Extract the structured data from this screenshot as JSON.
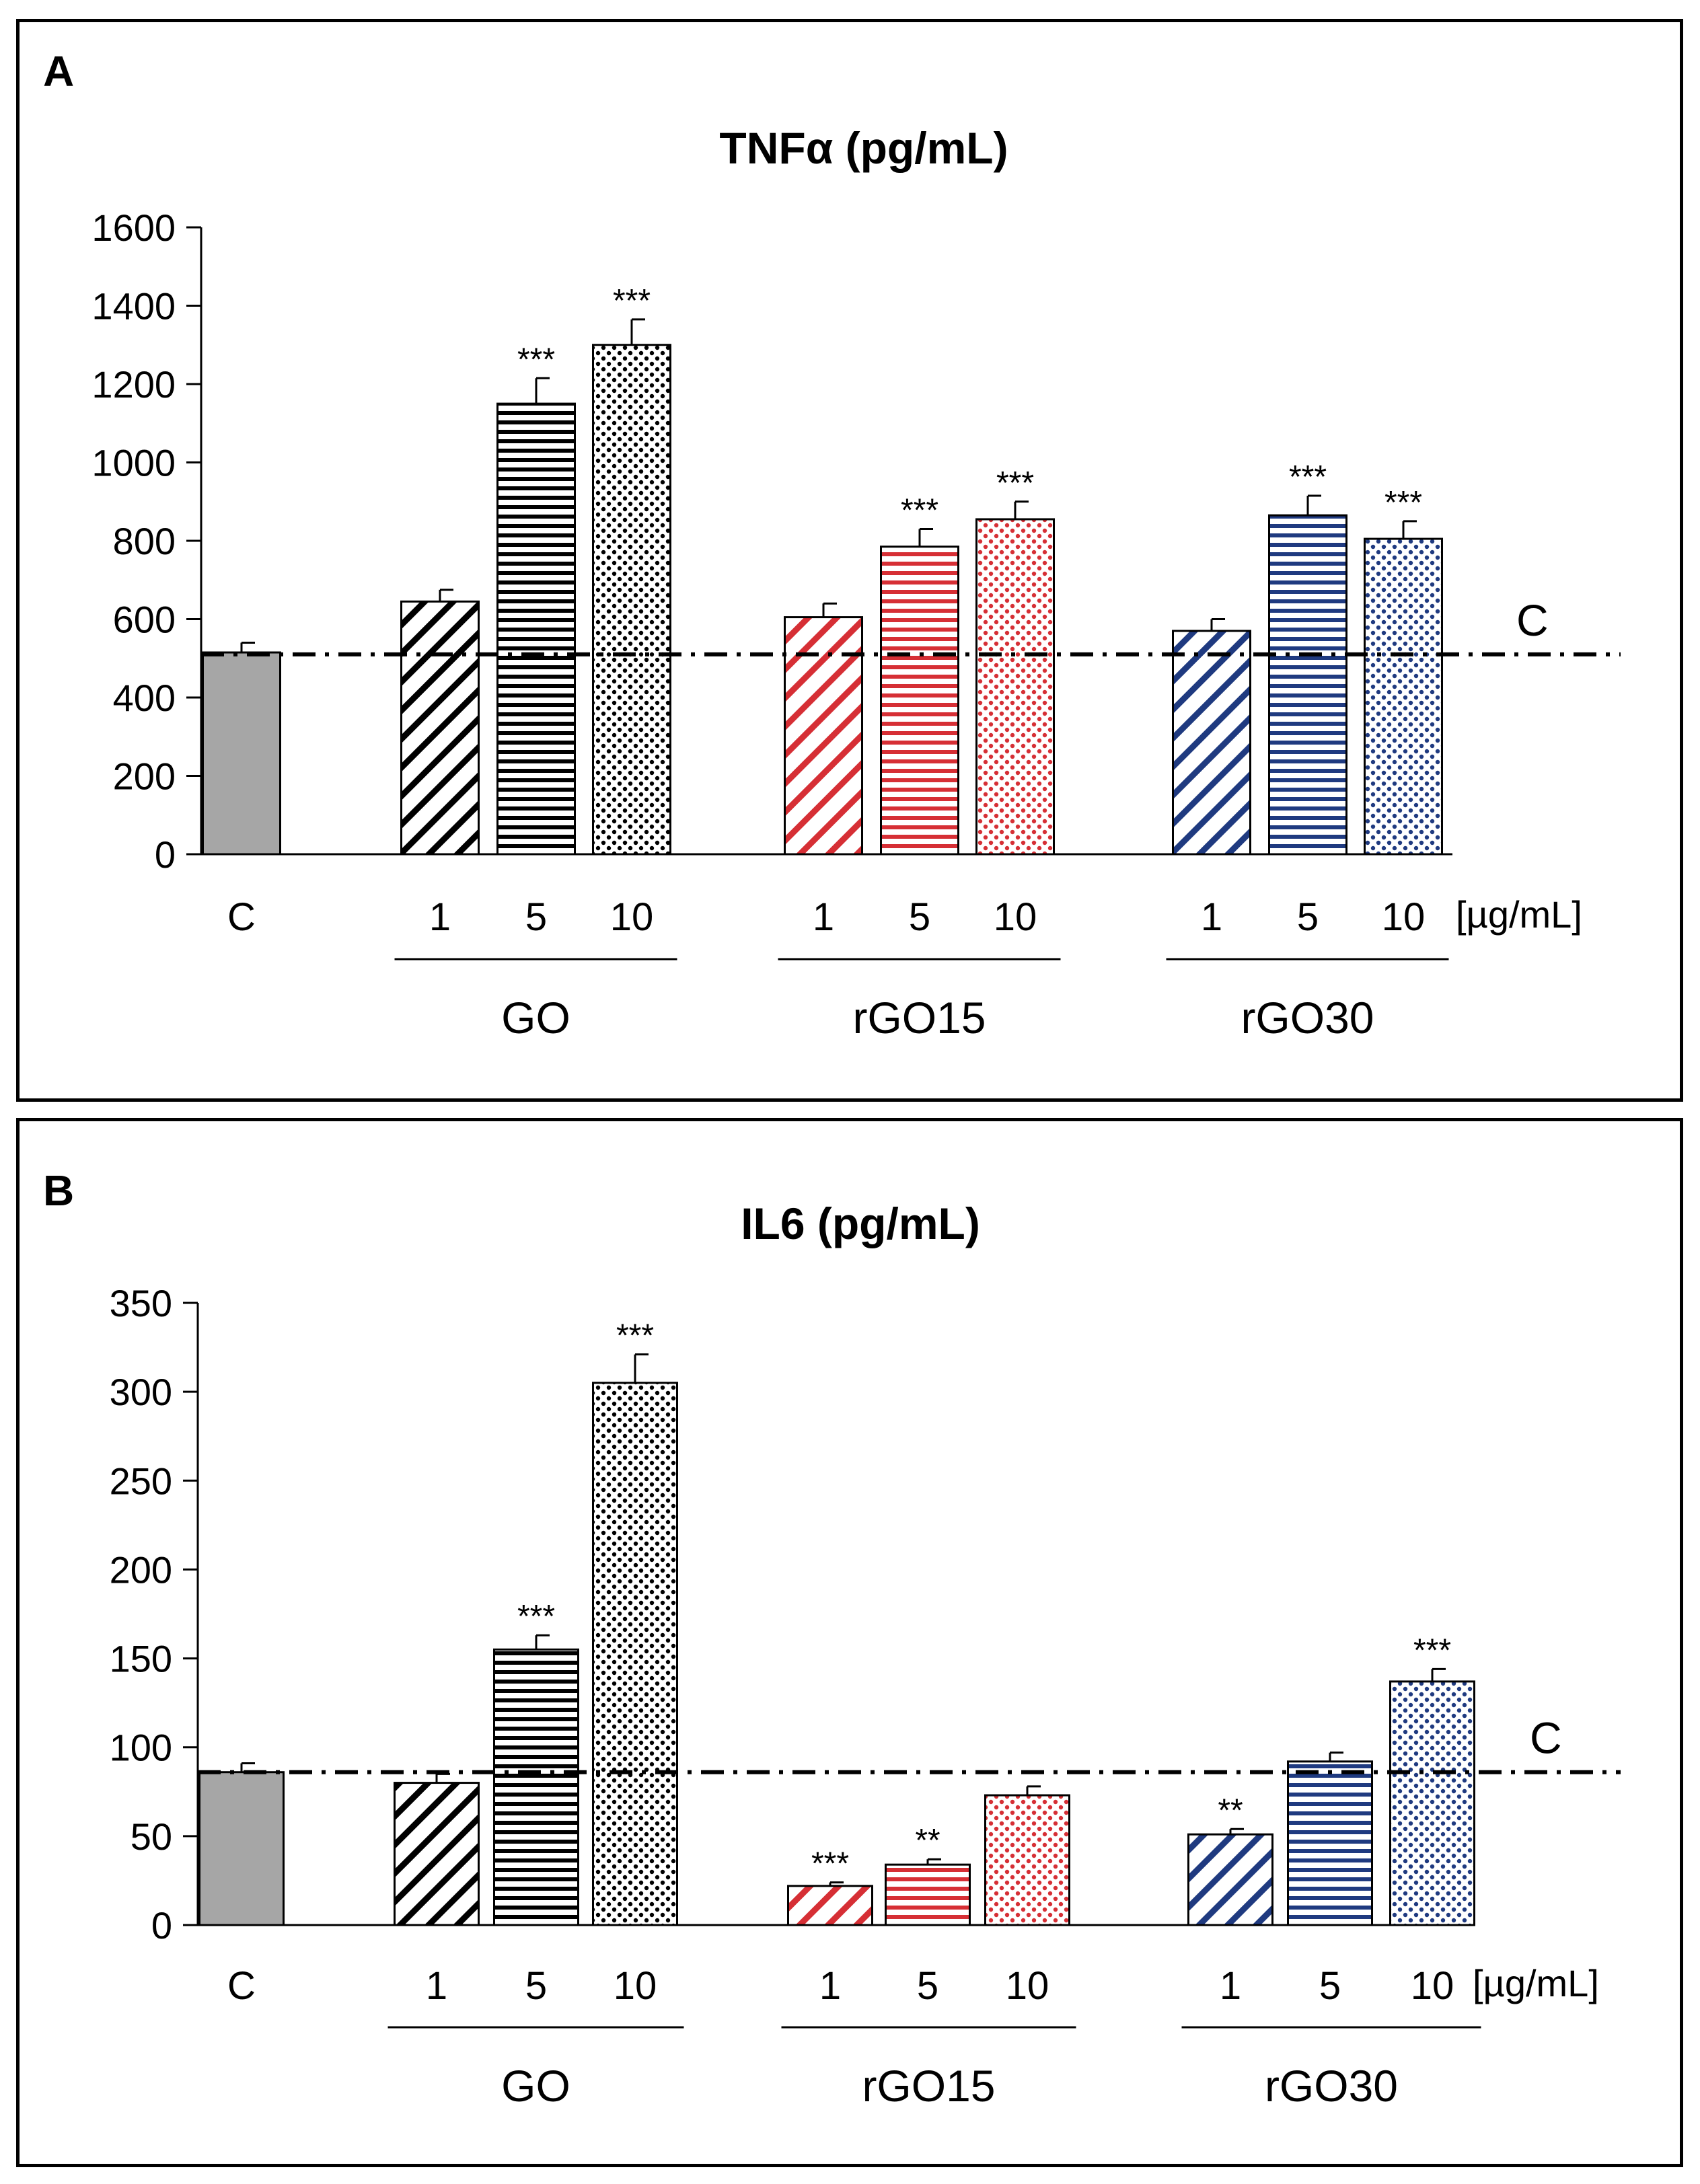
{
  "chart_data": [
    {
      "panel_label": "A",
      "type": "bar",
      "title": "TNFα (pg/mL)",
      "ylim": [
        0,
        1600
      ],
      "yticks": [
        0,
        200,
        400,
        600,
        800,
        1000,
        1200,
        1400,
        1600
      ],
      "unit_label": "[µg/mL]",
      "reference_line": {
        "label": "C",
        "value": 510
      },
      "groups": [
        {
          "name": "",
          "bars": [
            {
              "label": "C",
              "value": 515,
              "error": 25,
              "sig": "",
              "color": "#a6a6a6",
              "pattern": "solid"
            }
          ]
        },
        {
          "name": "GO",
          "bars": [
            {
              "label": "1",
              "value": 645,
              "error": 30,
              "sig": "",
              "color": "#000000",
              "pattern": "diag"
            },
            {
              "label": "5",
              "value": 1150,
              "error": 65,
              "sig": "***",
              "color": "#000000",
              "pattern": "horiz"
            },
            {
              "label": "10",
              "value": 1300,
              "error": 65,
              "sig": "***",
              "color": "#000000",
              "pattern": "dots"
            }
          ]
        },
        {
          "name": "rGO15",
          "bars": [
            {
              "label": "1",
              "value": 605,
              "error": 35,
              "sig": "",
              "color": "#d62f35",
              "pattern": "diag"
            },
            {
              "label": "5",
              "value": 785,
              "error": 45,
              "sig": "***",
              "color": "#d62f35",
              "pattern": "horiz"
            },
            {
              "label": "10",
              "value": 855,
              "error": 45,
              "sig": "***",
              "color": "#d62f35",
              "pattern": "dots"
            }
          ]
        },
        {
          "name": "rGO30",
          "bars": [
            {
              "label": "1",
              "value": 570,
              "error": 30,
              "sig": "",
              "color": "#1f3a80",
              "pattern": "diag"
            },
            {
              "label": "5",
              "value": 865,
              "error": 50,
              "sig": "***",
              "color": "#1f3a80",
              "pattern": "horiz"
            },
            {
              "label": "10",
              "value": 805,
              "error": 45,
              "sig": "***",
              "color": "#1f3a80",
              "pattern": "dots"
            }
          ]
        }
      ]
    },
    {
      "panel_label": "B",
      "type": "bar",
      "title": "IL6 (pg/mL)",
      "ylim": [
        0,
        350
      ],
      "yticks": [
        0,
        50,
        100,
        150,
        200,
        250,
        300,
        350
      ],
      "unit_label": "[µg/mL]",
      "reference_line": {
        "label": "C",
        "value": 86
      },
      "groups": [
        {
          "name": "",
          "bars": [
            {
              "label": "C",
              "value": 86,
              "error": 5,
              "sig": "",
              "color": "#a6a6a6",
              "pattern": "solid"
            }
          ]
        },
        {
          "name": "GO",
          "bars": [
            {
              "label": "1",
              "value": 80,
              "error": 5,
              "sig": "",
              "color": "#000000",
              "pattern": "diag"
            },
            {
              "label": "5",
              "value": 155,
              "error": 8,
              "sig": "***",
              "color": "#000000",
              "pattern": "horiz"
            },
            {
              "label": "10",
              "value": 305,
              "error": 16,
              "sig": "***",
              "color": "#000000",
              "pattern": "dots"
            }
          ]
        },
        {
          "name": "rGO15",
          "bars": [
            {
              "label": "1",
              "value": 22,
              "error": 2,
              "sig": "***",
              "color": "#d62f35",
              "pattern": "diag"
            },
            {
              "label": "5",
              "value": 34,
              "error": 3,
              "sig": "**",
              "color": "#d62f35",
              "pattern": "horiz"
            },
            {
              "label": "10",
              "value": 73,
              "error": 5,
              "sig": "",
              "color": "#d62f35",
              "pattern": "dots"
            }
          ]
        },
        {
          "name": "rGO30",
          "bars": [
            {
              "label": "1",
              "value": 51,
              "error": 3,
              "sig": "**",
              "color": "#1f3a80",
              "pattern": "diag"
            },
            {
              "label": "5",
              "value": 92,
              "error": 5,
              "sig": "",
              "color": "#1f3a80",
              "pattern": "horiz"
            },
            {
              "label": "10",
              "value": 137,
              "error": 7,
              "sig": "***",
              "color": "#1f3a80",
              "pattern": "dots"
            }
          ]
        }
      ]
    }
  ]
}
